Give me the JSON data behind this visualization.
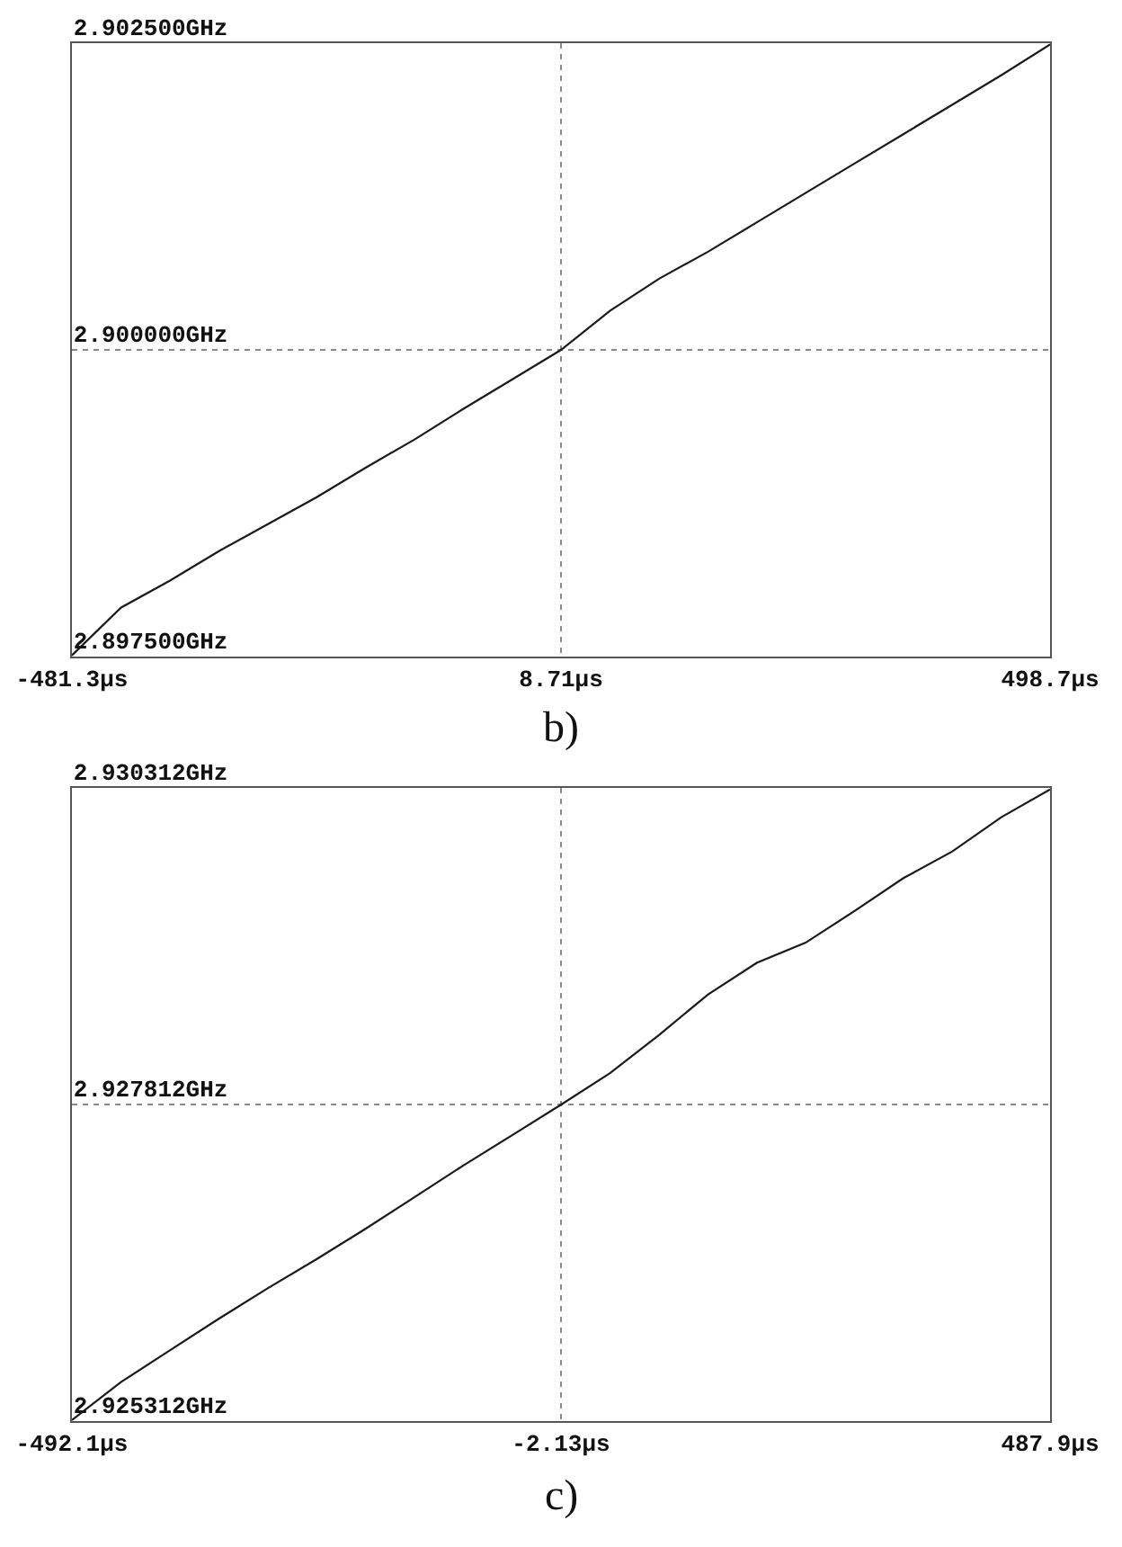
{
  "chart_data": [
    {
      "type": "line",
      "annotations": [
        "b)"
      ],
      "x": [
        -481.3,
        -432,
        -383,
        -334,
        -285,
        -236,
        -187,
        -138,
        -89,
        -40,
        8.71,
        58,
        107,
        156,
        205,
        254,
        303,
        352,
        401,
        450,
        498.7
      ],
      "series": [
        {
          "color": "#1a1a1a",
          "values": [
            2.89751,
            2.8979,
            2.89812,
            2.89836,
            2.89858,
            2.8988,
            2.89904,
            2.89927,
            2.89952,
            2.89976,
            2.9,
            2.90032,
            2.90058,
            2.9008,
            2.90104,
            2.90128,
            2.90152,
            2.90176,
            2.902,
            2.90224,
            2.90249
          ]
        }
      ],
      "xlim": [
        -481.3,
        498.7
      ],
      "xticks": [
        {
          "value": -481.3,
          "label": "-481.3µs"
        },
        {
          "value": 8.71,
          "label": "8.71µs"
        },
        {
          "value": 498.7,
          "label": "498.7µs"
        }
      ],
      "ylim": [
        2.8975,
        2.9025
      ],
      "yticks": [
        {
          "value": 2.8975,
          "label": "2.897500GHz"
        },
        {
          "value": 2.9,
          "label": "2.900000GHz"
        },
        {
          "value": 2.9025,
          "label": "2.902500GHz"
        }
      ],
      "grid": true
    },
    {
      "type": "line",
      "annotations": [
        "c)"
      ],
      "x": [
        -492.1,
        -443,
        -394,
        -345,
        -296,
        -247,
        -198,
        -149,
        -100,
        -51,
        -2.13,
        47,
        96,
        145,
        194,
        243,
        292,
        341,
        390,
        439,
        487.9
      ],
      "series": [
        {
          "color": "#1a1a1a",
          "values": [
            2.92532,
            2.92562,
            2.92587,
            2.92612,
            2.92636,
            2.92659,
            2.92683,
            2.92708,
            2.92733,
            2.92757,
            2.92781,
            2.92806,
            2.92836,
            2.92868,
            2.92893,
            2.92909,
            2.92934,
            2.9296,
            2.92981,
            2.93008,
            2.9303
          ]
        }
      ],
      "xlim": [
        -492.1,
        487.9
      ],
      "xticks": [
        {
          "value": -492.1,
          "label": "-492.1µs"
        },
        {
          "value": -2.13,
          "label": "-2.13µs"
        },
        {
          "value": 487.9,
          "label": "487.9µs"
        }
      ],
      "ylim": [
        2.925312,
        2.930312
      ],
      "yticks": [
        {
          "value": 2.925312,
          "label": "2.925312GHz"
        },
        {
          "value": 2.927812,
          "label": "2.927812GHz"
        },
        {
          "value": 2.930312,
          "label": "2.930312GHz"
        }
      ],
      "grid": true
    }
  ]
}
